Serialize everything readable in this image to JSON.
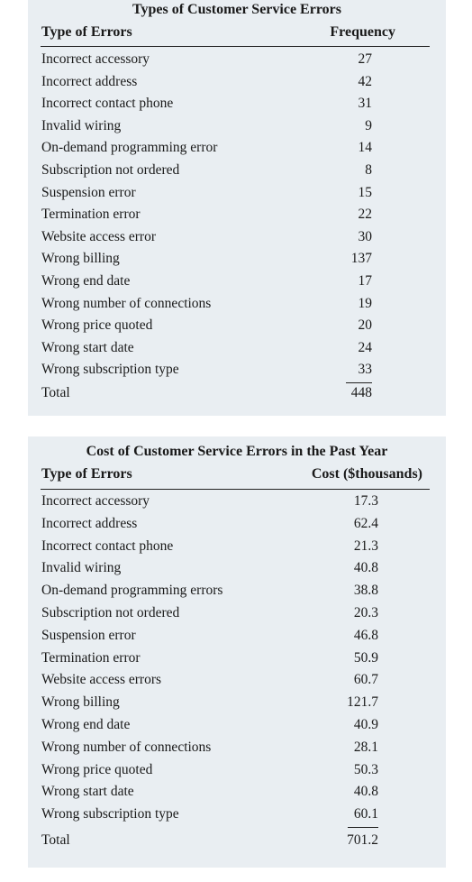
{
  "table1": {
    "title": "Types of Customer Service Errors",
    "col_type": "Type of Errors",
    "col_value": "Frequency",
    "rows": [
      {
        "label": "Incorrect accessory",
        "value": "27"
      },
      {
        "label": "Incorrect address",
        "value": "42"
      },
      {
        "label": "Incorrect contact phone",
        "value": "31"
      },
      {
        "label": "Invalid wiring",
        "value": "9"
      },
      {
        "label": "On-demand programming error",
        "value": "14"
      },
      {
        "label": "Subscription not ordered",
        "value": "8"
      },
      {
        "label": "Suspension error",
        "value": "15"
      },
      {
        "label": "Termination error",
        "value": "22"
      },
      {
        "label": "Website access error",
        "value": "30"
      },
      {
        "label": "Wrong billing",
        "value": "137"
      },
      {
        "label": "Wrong end date",
        "value": "17"
      },
      {
        "label": "Wrong number of connections",
        "value": "19"
      },
      {
        "label": "Wrong price quoted",
        "value": "20"
      },
      {
        "label": "Wrong start date",
        "value": "24"
      },
      {
        "label": "Wrong subscription type",
        "value": "33"
      }
    ],
    "total_label": "Total",
    "total_value": "448"
  },
  "table2": {
    "title": "Cost of Customer Service Errors in the Past Year",
    "col_type": "Type of Errors",
    "col_value": "Cost ($thousands)",
    "rows": [
      {
        "label": "Incorrect accessory",
        "value": "17.3"
      },
      {
        "label": "Incorrect address",
        "value": "62.4"
      },
      {
        "label": "Incorrect contact phone",
        "value": "21.3"
      },
      {
        "label": "Invalid wiring",
        "value": "40.8"
      },
      {
        "label": "On-demand programming errors",
        "value": "38.8"
      },
      {
        "label": "Subscription not ordered",
        "value": "20.3"
      },
      {
        "label": "Suspension error",
        "value": "46.8"
      },
      {
        "label": "Termination error",
        "value": "50.9"
      },
      {
        "label": "Website access errors",
        "value": "60.7"
      },
      {
        "label": "Wrong billing",
        "value": "121.7"
      },
      {
        "label": "Wrong end date",
        "value": "40.9"
      },
      {
        "label": "Wrong number of connections",
        "value": "28.1"
      },
      {
        "label": "Wrong price quoted",
        "value": "50.3"
      },
      {
        "label": "Wrong start date",
        "value": "40.8"
      },
      {
        "label": "Wrong subscription type",
        "value": "60.1"
      }
    ],
    "total_label": "Total",
    "total_value": "701.2"
  }
}
